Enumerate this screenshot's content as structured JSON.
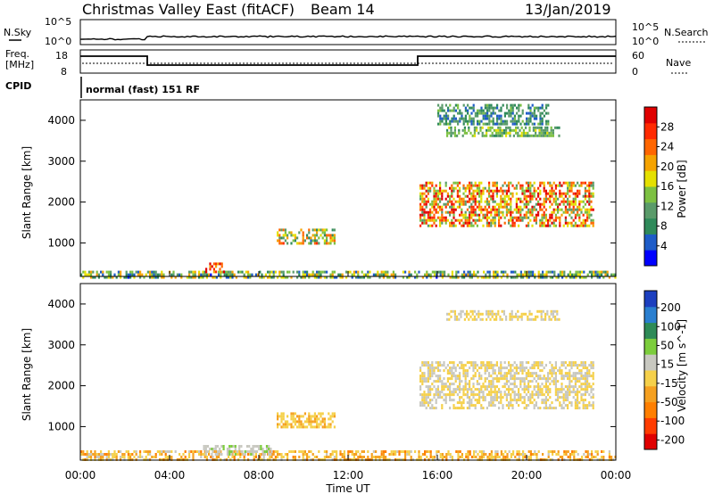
{
  "header": {
    "radar": "Christmas Valley East (fitACF)",
    "beam": "Beam 14",
    "date": "13/Jan/2019"
  },
  "sky_panel": {
    "left_label": "N.Sky",
    "right_label": "N.Search",
    "left_top": "10^5",
    "left_bottom": "10^0",
    "right_top": "10^5",
    "right_bottom": "10^0"
  },
  "freq_panel": {
    "left_label_1": "Freq.",
    "left_label_2": "[MHz]",
    "right_label": "Nave",
    "left_top": "18",
    "left_bottom": "8",
    "right_top": "60",
    "right_bottom": "0"
  },
  "cpid": {
    "label": "CPID",
    "mode": "normal (fast) 151 RF"
  },
  "colors": {
    "power_scale": [
      "#0000ff",
      "#1e5cc8",
      "#2f8a5a",
      "#5a9b6a",
      "#7dc142",
      "#e5e000",
      "#f5a300",
      "#ff6600",
      "#ff2a00",
      "#e00000"
    ],
    "velocity_scale": [
      "#1c3fbf",
      "#2a7fd0",
      "#2e8b57",
      "#7ccd3c",
      "#c8c8c0",
      "#f5d04a",
      "#f5a020",
      "#ff7f00",
      "#ff3c00",
      "#e00000"
    ]
  },
  "chart_data": [
    {
      "type": "heatmap",
      "title": "Power",
      "ylabel": "Slant Range [km]",
      "xlabel": "",
      "x_ticks": [
        "00:00",
        "04:00",
        "08:00",
        "12:00",
        "16:00",
        "20:00",
        "00:00"
      ],
      "y_ticks": [
        1000,
        2000,
        3000,
        4000
      ],
      "ylim": [
        180,
        4500
      ],
      "xlim_hours": [
        0,
        24
      ],
      "colorbar": {
        "label": "Power [dB]",
        "ticks": [
          4,
          8,
          12,
          16,
          20,
          24,
          28
        ],
        "range": [
          0,
          32
        ]
      },
      "regions": [
        {
          "t0": 0.0,
          "t1": 24.0,
          "r0": 180,
          "r1": 320,
          "v": [
            3,
            22
          ]
        },
        {
          "t0": 5.6,
          "t1": 6.4,
          "r0": 300,
          "r1": 520,
          "v": [
            20,
            32
          ]
        },
        {
          "t0": 8.8,
          "t1": 11.4,
          "r0": 1000,
          "r1": 1350,
          "v": [
            6,
            26
          ]
        },
        {
          "t0": 15.2,
          "t1": 23.0,
          "r0": 1450,
          "r1": 2500,
          "v": [
            10,
            32
          ]
        },
        {
          "t0": 16.4,
          "t1": 21.5,
          "r0": 3600,
          "r1": 3850,
          "v": [
            8,
            18
          ]
        },
        {
          "t0": 16.0,
          "t1": 21.0,
          "r0": 3900,
          "r1": 4400,
          "v": [
            4,
            14
          ]
        }
      ]
    },
    {
      "type": "heatmap",
      "title": "Velocity",
      "ylabel": "Slant Range [km]",
      "xlabel": "Time UT",
      "x_ticks": [
        "00:00",
        "04:00",
        "08:00",
        "12:00",
        "16:00",
        "20:00",
        "00:00"
      ],
      "y_ticks": [
        1000,
        2000,
        3000,
        4000
      ],
      "ylim": [
        180,
        4500
      ],
      "xlim_hours": [
        0,
        24
      ],
      "colorbar": {
        "label": "Velocity [m s^-1]",
        "ticks": [
          200,
          100,
          50,
          15,
          -15,
          -50,
          -100,
          -200
        ],
        "range": [
          -250,
          250
        ]
      },
      "regions": [
        {
          "t0": 0.0,
          "t1": 24.0,
          "r0": 180,
          "r1": 420,
          "v": [
            -120,
            20
          ]
        },
        {
          "t0": 5.5,
          "t1": 8.5,
          "r0": 300,
          "r1": 550,
          "v": [
            20,
            60
          ]
        },
        {
          "t0": 8.8,
          "t1": 11.4,
          "r0": 1000,
          "r1": 1350,
          "v": [
            -60,
            -30
          ]
        },
        {
          "t0": 15.2,
          "t1": 23.0,
          "r0": 1450,
          "r1": 2600,
          "v": [
            -14,
            14
          ]
        },
        {
          "t0": 16.4,
          "t1": 21.5,
          "r0": 3600,
          "r1": 3850,
          "v": [
            -20,
            10
          ]
        }
      ]
    }
  ]
}
